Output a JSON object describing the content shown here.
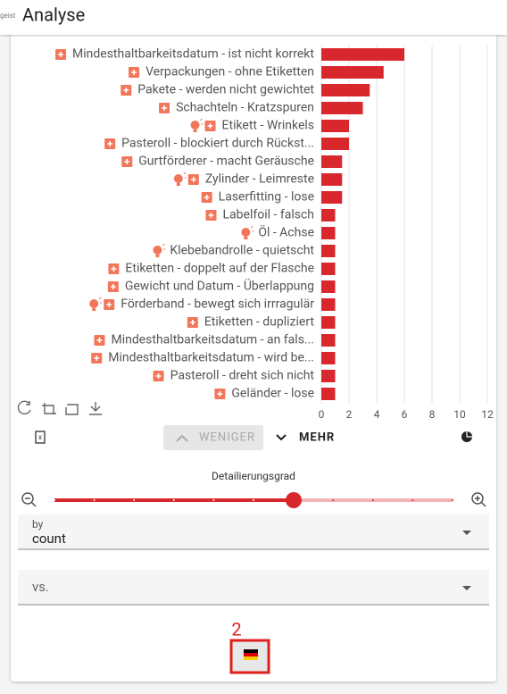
{
  "header": {
    "brand": "geist",
    "title": "Analyse"
  },
  "chart_data": {
    "type": "hbar",
    "categories": [
      "Mindesthaltbarkeitsdatum - ist nicht korrekt",
      "Verpackungen - ohne Etiketten",
      "Pakete - werden nicht gewichtet",
      "Schachteln - Kratzspuren",
      "Etikett - Wrinkels",
      "Pasteroll - blockiert durch Rückst...",
      "Gurtförderer - macht Geräusche",
      "Zylinder - Leimreste",
      "Laserfitting - lose",
      "Labelfoil - falsch",
      "Öl - Achse",
      "Klebebandrolle - quietscht",
      "Etiketten - doppelt auf der Flasche",
      "Gewicht und Datum - Überlappung",
      "Förderband - bewegt sich irrragulär",
      "Etiketten - dupliziert",
      "Mindesthaltbarkeitsdatum - an fals...",
      "Mindesthaltbarkeitsdatum - wird be...",
      "Pasteroll - dreht sich nicht",
      "Geländer - lose"
    ],
    "values": [
      6,
      4.5,
      3.5,
      3,
      2,
      2,
      1.5,
      1.5,
      1.5,
      1,
      1,
      1,
      1,
      1,
      1,
      1,
      1,
      1,
      1,
      1
    ],
    "icons": [
      [
        "plus"
      ],
      [
        "plus"
      ],
      [
        "plus"
      ],
      [
        "plus"
      ],
      [
        "bulb",
        "plus"
      ],
      [
        "plus"
      ],
      [
        "plus"
      ],
      [
        "bulb",
        "plus"
      ],
      [
        "plus"
      ],
      [
        "plus"
      ],
      [
        "bulb"
      ],
      [
        "bulb"
      ],
      [
        "plus"
      ],
      [
        "plus"
      ],
      [
        "bulb",
        "plus"
      ],
      [
        "plus"
      ],
      [
        "plus"
      ],
      [
        "plus"
      ],
      [
        "plus"
      ],
      [
        "plus"
      ]
    ],
    "color": "#d9272e",
    "xlim": [
      0,
      12
    ],
    "xticks": [
      0,
      2,
      4,
      6,
      8,
      10,
      12
    ],
    "grid": true
  },
  "controls": {
    "less": "WENIGER",
    "more": "MEHR",
    "slider_label": "Detailierungsgrad",
    "by_label": "by",
    "by_value": "count",
    "vs_label": "vs.",
    "badge": "2"
  }
}
